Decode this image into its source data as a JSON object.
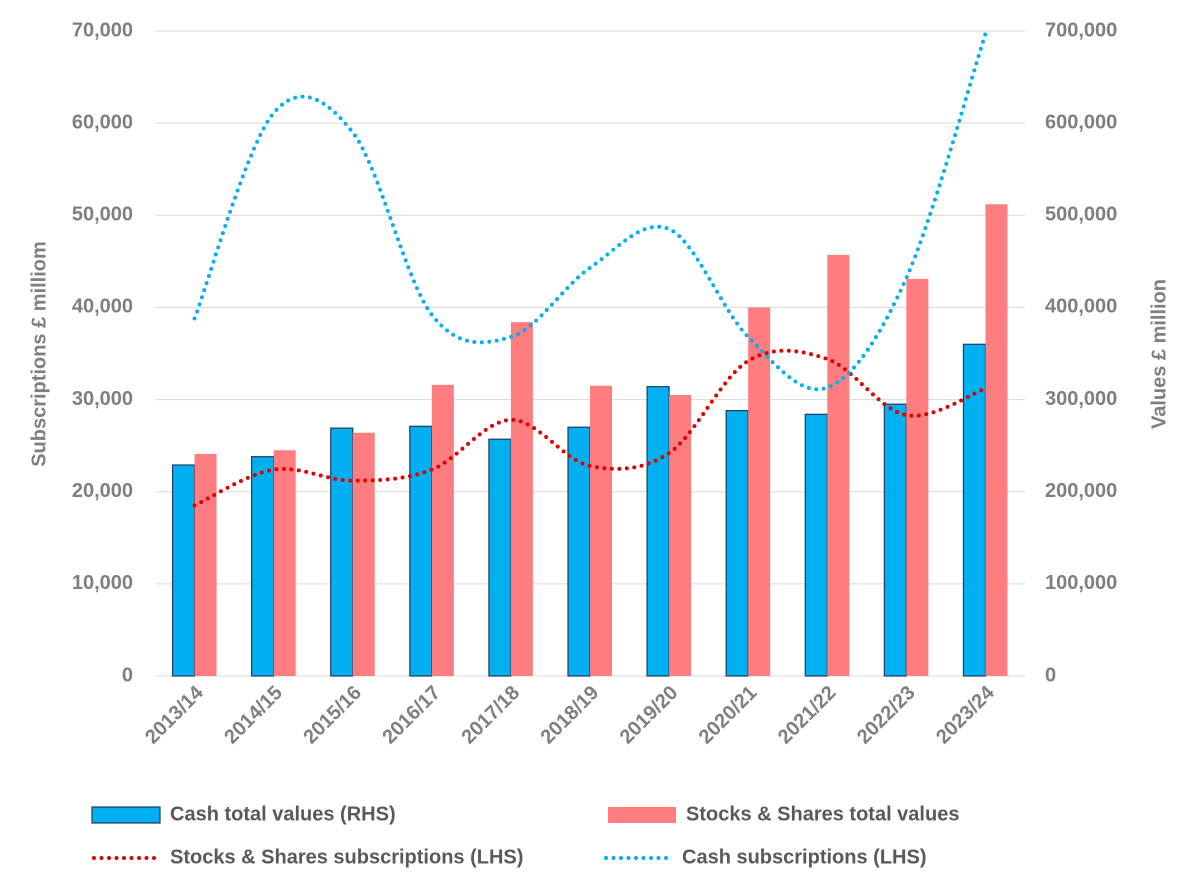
{
  "chart_data": {
    "type": "combo",
    "y_label": "Subscriptions £ milliom",
    "y2_label": "Values £ million",
    "categories": [
      "2013/14",
      "2014/15",
      "2015/16",
      "2016/17",
      "2017/18",
      "2018/19",
      "2019/20",
      "2020/21",
      "2021/22",
      "2022/23",
      "2023/24"
    ],
    "ylim": [
      0,
      70000
    ],
    "yticks": [
      0,
      {
        "value": 10000,
        "label": "10,000"
      },
      {
        "value": 20000,
        "label": "20,000"
      },
      {
        "value": 30000,
        "label": "30,000"
      },
      {
        "value": 40000,
        "label": "40,000"
      },
      {
        "value": 50000,
        "label": "50,000"
      },
      {
        "value": 60000,
        "label": "60,000"
      },
      {
        "value": 70000,
        "label": "70,000"
      }
    ],
    "y2lim": [
      0,
      700000
    ],
    "y2ticks": [
      0,
      {
        "value": 100000,
        "label": "100,000"
      },
      {
        "value": 200000,
        "label": "200,000"
      },
      {
        "value": 300000,
        "label": "300,000"
      },
      {
        "value": 400000,
        "label": "400,000"
      },
      {
        "value": 500000,
        "label": "500,000"
      },
      {
        "value": 600000,
        "label": "600,000"
      },
      {
        "value": 700000,
        "label": "700,000"
      }
    ],
    "grid": true,
    "series": [
      {
        "name": "Cash total values (RHS)",
        "type": "bar",
        "axis": "y2",
        "color": "#00b0f0",
        "values": [
          229000,
          238000,
          269000,
          271000,
          257000,
          270000,
          314000,
          288000,
          284000,
          295000,
          360000
        ]
      },
      {
        "name": "Stocks & Shares total values",
        "type": "bar",
        "axis": "y2",
        "color": "#ff7c80",
        "values": [
          241000,
          245000,
          264000,
          316000,
          384000,
          315000,
          305000,
          400000,
          457000,
          431000,
          512000
        ]
      },
      {
        "name": "Stocks & Shares subscriptions (LHS)",
        "type": "line",
        "color": "#e00000",
        "values": [
          18500,
          22400,
          21200,
          22400,
          27800,
          22800,
          24200,
          34200,
          34400,
          28300,
          31200
        ]
      },
      {
        "name": "Cash subscriptions (LHS)",
        "type": "line",
        "color": "#00b0f0",
        "values": [
          38800,
          61100,
          59000,
          39200,
          36800,
          44300,
          48500,
          36800,
          31300,
          43200,
          69700
        ]
      }
    ]
  }
}
